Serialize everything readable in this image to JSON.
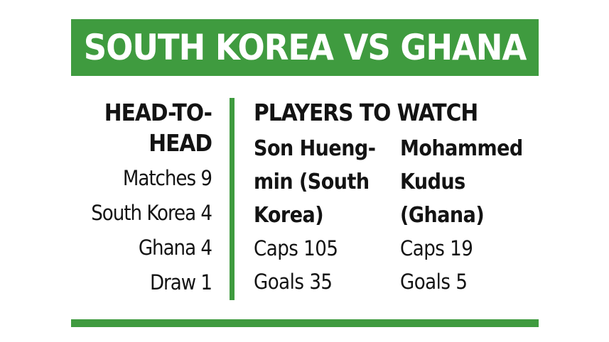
{
  "colors": {
    "green": "#3f9b3f",
    "text": "#131313",
    "banner_text": "#ffffff",
    "background": "#ffffff"
  },
  "banner": {
    "title": "SOUTH KOREA VS GHANA"
  },
  "head_to_head": {
    "heading_lines": [
      "HEAD-TO-",
      "HEAD"
    ],
    "stats": [
      {
        "label": "Matches",
        "value": "9"
      },
      {
        "label": "South Korea",
        "value": "4"
      },
      {
        "label": "Ghana",
        "value": "4"
      },
      {
        "label": "Draw",
        "value": "1"
      }
    ]
  },
  "players_to_watch": {
    "heading": "PLAYERS TO WATCH",
    "players": [
      {
        "name_lines": [
          "Son Hueng-",
          "min (South",
          "Korea)"
        ],
        "stats": [
          {
            "label": "Caps",
            "value": "105"
          },
          {
            "label": "Goals",
            "value": "35"
          }
        ]
      },
      {
        "name_lines": [
          "Mohammed",
          "Kudus",
          "(Ghana)"
        ],
        "stats": [
          {
            "label": "Caps",
            "value": "19"
          },
          {
            "label": "Goals",
            "value": "5"
          }
        ]
      }
    ]
  }
}
